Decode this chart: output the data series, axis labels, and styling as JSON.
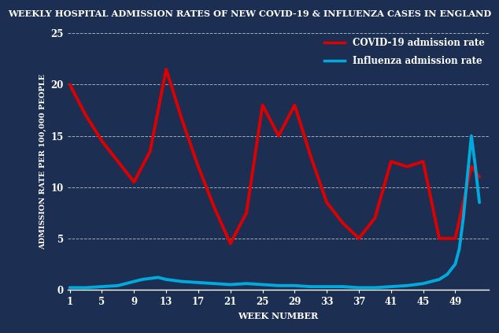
{
  "title": "WEEKLY HOSPITAL ADMISSION RATES OF NEW COVID-19 & INFLUENZA CASES IN ENGLAND",
  "title_bg_color": "#cc0000",
  "title_text_color": "#ffffff",
  "bg_color": "#1c2f52",
  "plot_bg_color": "#1c2f52",
  "xlabel": "WEEK NUMBER",
  "ylabel": "ADMISSION RATE PER 100,000 PEOPLE",
  "xlim": [
    1,
    53
  ],
  "ylim": [
    0,
    25
  ],
  "yticks": [
    0,
    5,
    10,
    15,
    20,
    25
  ],
  "xticks": [
    1,
    5,
    9,
    13,
    17,
    21,
    25,
    29,
    33,
    37,
    41,
    45,
    49
  ],
  "covid_color": "#dd0000",
  "flu_color": "#00aadd",
  "grid_color": "#ffffff",
  "covid_weeks": [
    1,
    3,
    5,
    7,
    9,
    11,
    13,
    15,
    17,
    19,
    21,
    23,
    25,
    27,
    29,
    31,
    33,
    35,
    37,
    39,
    41,
    43,
    45,
    47,
    49,
    51,
    52
  ],
  "covid_values": [
    20.0,
    17.0,
    14.5,
    12.5,
    10.5,
    13.5,
    21.5,
    16.5,
    12.0,
    8.0,
    4.5,
    7.5,
    18.0,
    15.0,
    18.0,
    13.0,
    8.5,
    6.5,
    5.0,
    7.0,
    12.5,
    12.0,
    12.5,
    5.0,
    5.0,
    12.0,
    11.0
  ],
  "flu_weeks": [
    1,
    3,
    5,
    7,
    9,
    10,
    11,
    12,
    13,
    15,
    17,
    19,
    21,
    23,
    25,
    27,
    29,
    31,
    33,
    35,
    37,
    39,
    41,
    43,
    45,
    46,
    47,
    48,
    49,
    49.5,
    50,
    50.5,
    51,
    51.5,
    52
  ],
  "flu_values": [
    0.2,
    0.2,
    0.3,
    0.4,
    0.8,
    1.0,
    1.1,
    1.2,
    1.0,
    0.8,
    0.7,
    0.6,
    0.5,
    0.6,
    0.5,
    0.4,
    0.4,
    0.3,
    0.3,
    0.3,
    0.2,
    0.2,
    0.3,
    0.4,
    0.6,
    0.8,
    1.0,
    1.5,
    2.5,
    4.0,
    7.0,
    11.0,
    15.0,
    12.0,
    8.5
  ],
  "legend_covid": "COVID-19 admission rate",
  "legend_flu": "Influenza admission rate",
  "linewidth": 2.8,
  "title_fontsize": 8.2,
  "axis_label_fontsize": 8.0,
  "tick_fontsize": 8.5,
  "legend_fontsize": 8.5
}
